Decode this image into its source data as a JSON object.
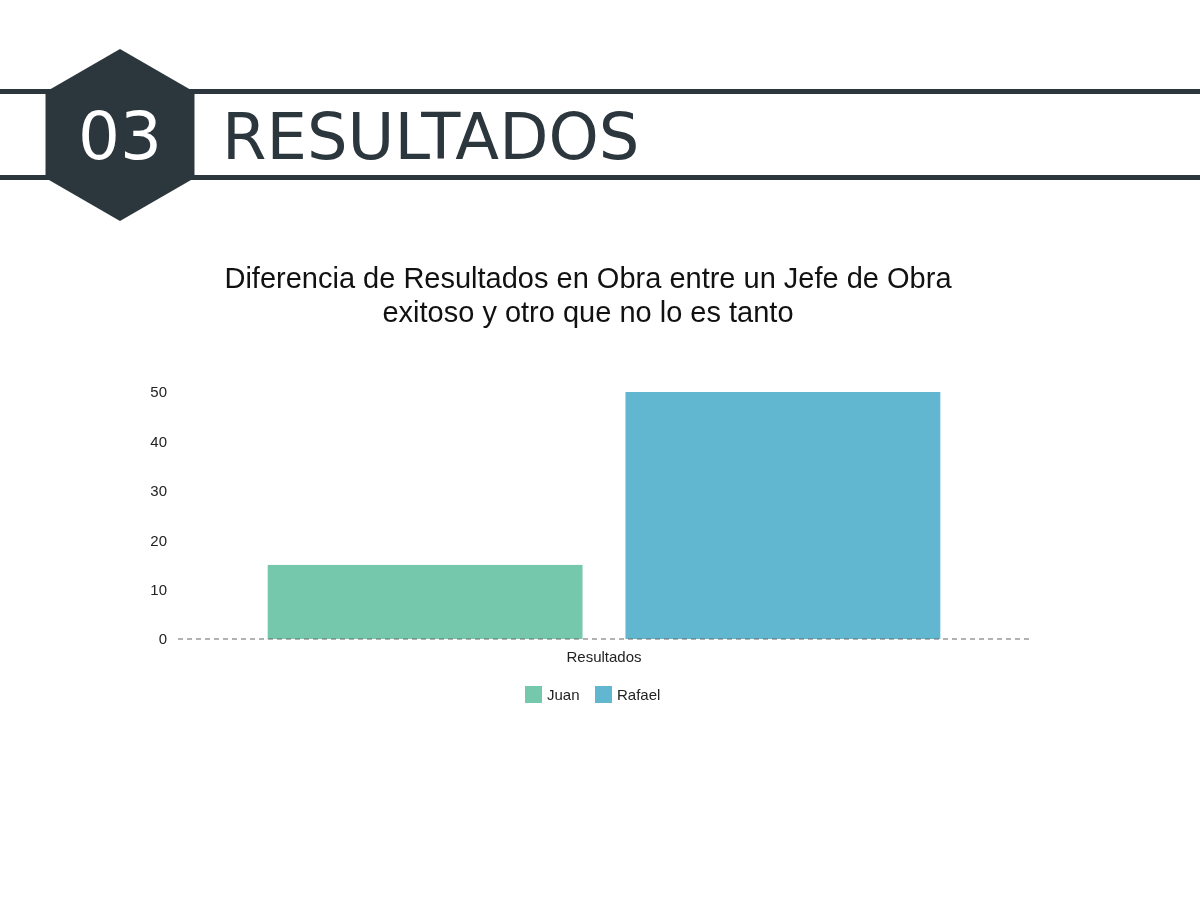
{
  "chart_data": {
    "type": "bar",
    "title": "Diferencia de Resultados en Obra entre un Jefe de Obra\nexitoso y otro que no lo es tanto",
    "annotations": [
      "03",
      "RESULTADOS"
    ],
    "categories": [
      "Resultados"
    ],
    "series": [
      {
        "name": "Juan",
        "color": "#76c8ad",
        "values": [
          15
        ]
      },
      {
        "name": "Rafael",
        "color": "#62b7d0",
        "values": [
          50
        ]
      }
    ],
    "ylim": [
      0,
      50
    ],
    "yticks": [
      0,
      10,
      20,
      30,
      40,
      50
    ],
    "grid": false,
    "legend": "bottom"
  }
}
